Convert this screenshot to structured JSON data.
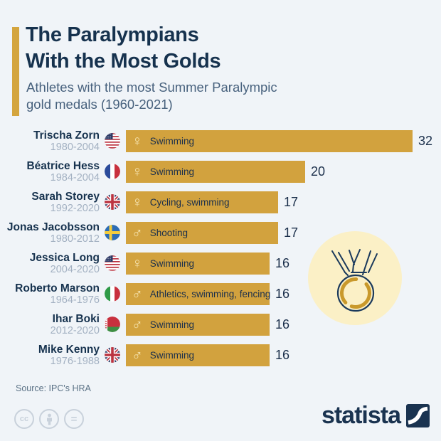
{
  "header": {
    "title": "The Paralympians\nWith the Most Golds",
    "subtitle": "Athletes with the most Summer Paralympic\ngold medals (1960-2021)"
  },
  "chart_data": {
    "type": "bar",
    "title": "The Paralympians With the Most Golds",
    "subtitle": "Athletes with the most Summer Paralympic gold medals (1960-2021)",
    "orientation": "horizontal",
    "max_value": 32,
    "value_label_position": "right-of-bar",
    "rows": [
      {
        "name": "Trischa Zorn",
        "years": "1980-2004",
        "flag": "us",
        "gender": "female",
        "sports": "Swimming",
        "value": 32
      },
      {
        "name": "Béatrice Hess",
        "years": "1984-2004",
        "flag": "fr",
        "gender": "female",
        "sports": "Swimming",
        "value": 20
      },
      {
        "name": "Sarah Storey",
        "years": "1992-2020",
        "flag": "gb",
        "gender": "female",
        "sports": "Cycling, swimming",
        "value": 17
      },
      {
        "name": "Jonas Jacobsson",
        "years": "1980-2012",
        "flag": "se",
        "gender": "male",
        "sports": "Shooting",
        "value": 17
      },
      {
        "name": "Jessica Long",
        "years": "2004-2020",
        "flag": "us",
        "gender": "female",
        "sports": "Swimming",
        "value": 16
      },
      {
        "name": "Roberto Marson",
        "years": "1964-1976",
        "flag": "it",
        "gender": "male",
        "sports": "Athletics, swimming, fencing",
        "value": 16
      },
      {
        "name": "Ihar Boki",
        "years": "2012-2020",
        "flag": "by",
        "gender": "male",
        "sports": "Swimming",
        "value": 16
      },
      {
        "name": "Mike Kenny",
        "years": "1976-1988",
        "flag": "gb",
        "gender": "male",
        "sports": "Swimming",
        "value": 16
      }
    ]
  },
  "gender_symbols": {
    "female": "♀",
    "male": "♂"
  },
  "source": "Source: IPC's HRA",
  "license_icons": [
    "cc-icon",
    "attribution-icon",
    "equals-icon"
  ],
  "license_cc_label": "cc",
  "license_eq_label": "=",
  "branding": {
    "logo_text": "statista"
  },
  "colors": {
    "background": "#F0F4F8",
    "bar_gold": "#D2A23E",
    "accent_gold": "#D4A53E",
    "title_navy": "#16324E",
    "subtitle_slate": "#47617D",
    "dates_gray": "#A3B1C2",
    "value_navy": "#1B2F4B",
    "gender_cream": "#F5E2AD",
    "medal_bg": "#FBF0C6",
    "medal_gold": "#C9992B",
    "footer_gray": "#C8D1DB"
  }
}
